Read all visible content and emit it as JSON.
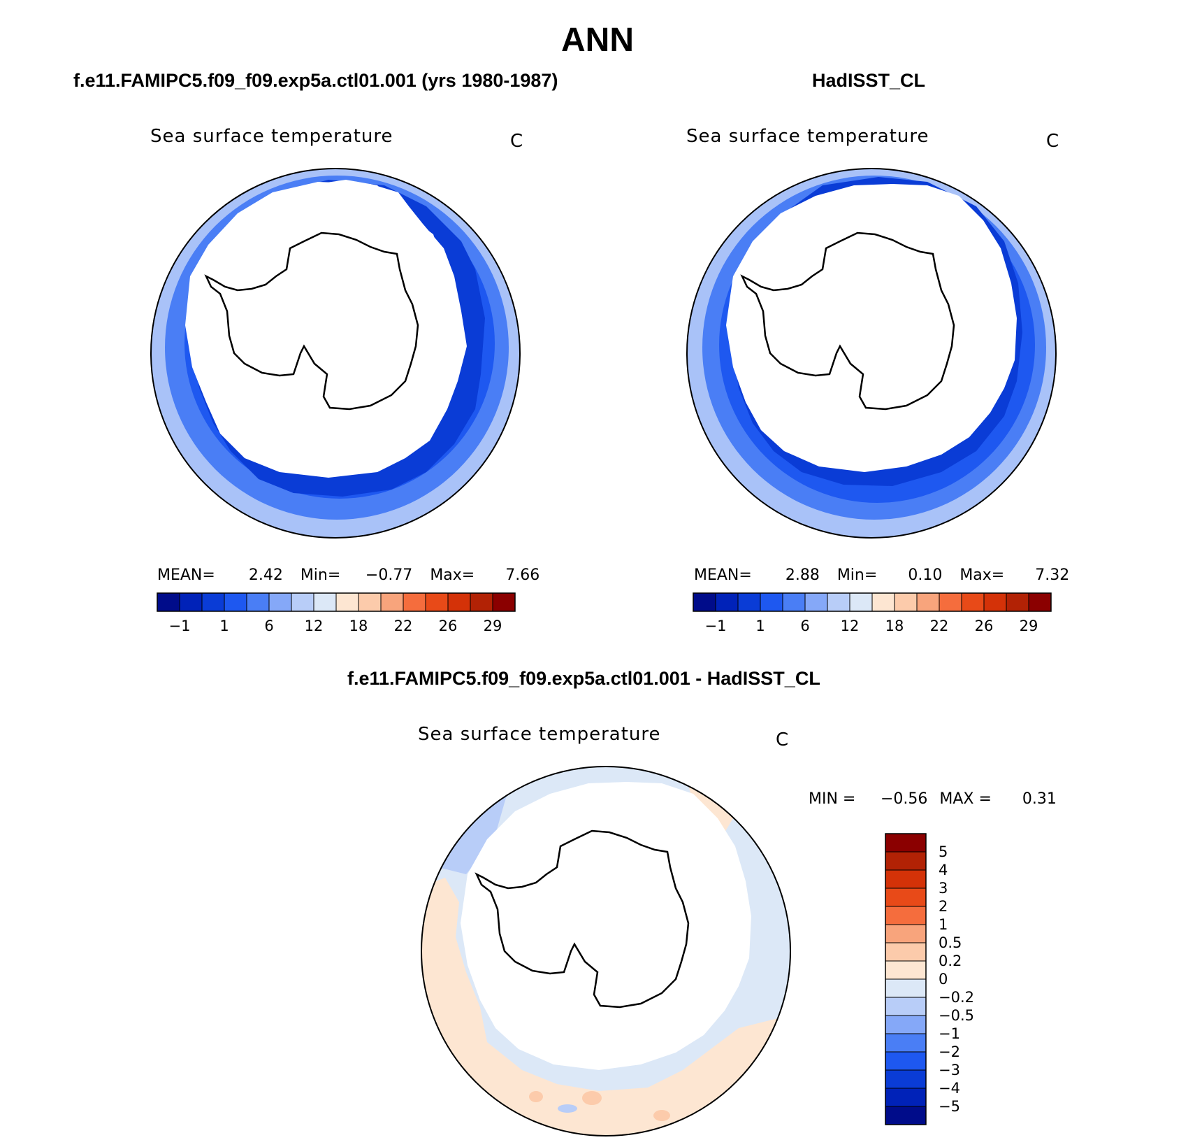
{
  "page_title": "ANN",
  "panels": [
    {
      "header": "f.e11.FAMIPC5.f09_f09.exp5a.ctl01.001 (yrs 1980-1987)",
      "plot_title": "Sea surface temperature",
      "unit": "C",
      "stats": {
        "mean_label": "MEAN=",
        "mean": "2.42",
        "min_label": "Min=",
        "min": "−0.77",
        "max_label": "Max=",
        "max": "7.66"
      }
    },
    {
      "header": "HadISST_CL",
      "plot_title": "Sea surface temperature",
      "unit": "C",
      "stats": {
        "mean_label": "MEAN=",
        "mean": "2.88",
        "min_label": "Min=",
        "min": "0.10",
        "max_label": "Max=",
        "max": "7.32"
      }
    }
  ],
  "diff_panel": {
    "header": "f.e11.FAMIPC5.f09_f09.exp5a.ctl01.001 - HadISST_CL",
    "plot_title": "Sea surface temperature",
    "unit": "C",
    "stats": {
      "min_label": "MIN =",
      "min": "−0.56",
      "max_label": "MAX =",
      "max": "0.31"
    }
  },
  "colorbar_abs": {
    "colors": [
      "#000c8a",
      "#0022b8",
      "#0a3cd6",
      "#1e58f0",
      "#4a7ef5",
      "#85a8f8",
      "#b8cdf8",
      "#dce8f7",
      "#fde6d2",
      "#fccbab",
      "#f8a47c",
      "#f56d3d",
      "#e84a18",
      "#d43208",
      "#b22205",
      "#8b0000"
    ],
    "tick_labels": [
      "−1",
      "1",
      "6",
      "12",
      "18",
      "22",
      "26",
      "29"
    ]
  },
  "colorbar_diff": {
    "colors": [
      "#000c8a",
      "#0022b8",
      "#0a3cd6",
      "#1e58f0",
      "#4a7ef5",
      "#85a8f8",
      "#b8cdf8",
      "#dce8f7",
      "#fde6d2",
      "#fccbab",
      "#f8a47c",
      "#f56d3d",
      "#e84a18",
      "#d43208",
      "#b22205",
      "#8b0000"
    ],
    "tick_labels": [
      "5",
      "4",
      "3",
      "2",
      "1",
      "0.5",
      "0.2",
      "0",
      "−0.2",
      "−0.5",
      "−1",
      "−2",
      "−3",
      "−4",
      "−5"
    ]
  }
}
